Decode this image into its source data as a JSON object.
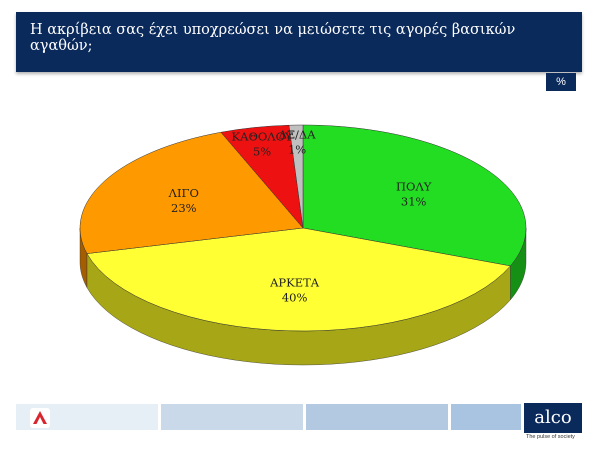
{
  "header": {
    "title": "Η ακρίβεια σας έχει υποχρεώσει να μειώσετε τις αγορές βασικών αγαθών;"
  },
  "badge": {
    "label": "%"
  },
  "chart_data": {
    "type": "pie",
    "title": "Η ακρίβεια σας έχει υποχρεώσει να μειώσετε τις αγορές βασικών αγαθών;",
    "unit": "%",
    "style": "3d",
    "slices": [
      {
        "label": "ΠΟΛΥ",
        "value": 31,
        "value_label": "31%",
        "color": "#22dd22",
        "side_color": "#159015"
      },
      {
        "label": "ΑΡΚΕΤΑ",
        "value": 40,
        "value_label": "40%",
        "color": "#ffff33",
        "side_color": "#a6a616"
      },
      {
        "label": "ΛΙΓΟ",
        "value": 23,
        "value_label": "23%",
        "color": "#ff9900",
        "side_color": "#a45e00"
      },
      {
        "label": "ΚΑΘΟΛΟΥ",
        "value": 5,
        "value_label": "5%",
        "color": "#ee1111",
        "side_color": "#8a0a0a"
      },
      {
        "label": "ΔΞ/ΔΑ",
        "value": 1,
        "value_label": "1%",
        "color": "#c0c0c0",
        "side_color": "#7a7a7a"
      }
    ]
  },
  "footer": {
    "brand": "alco",
    "tagline": "The pulse of society"
  },
  "colors": {
    "header_bg": "#0b2a5c",
    "footer_band": "#a8c4e0",
    "alpha_logo": "#d9262e"
  }
}
